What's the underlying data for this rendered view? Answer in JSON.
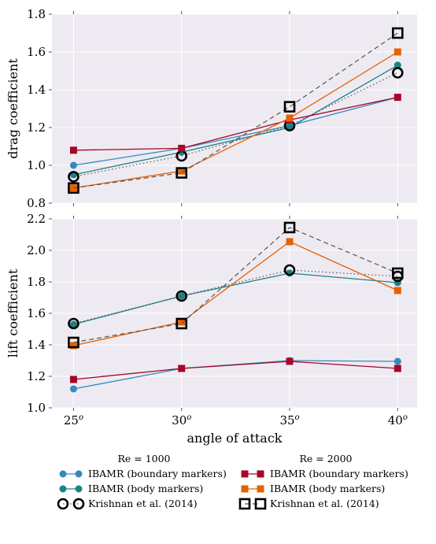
{
  "chart_data": [
    {
      "type": "line",
      "ylabel": "drag coefficient",
      "ylim": [
        0.8,
        1.8
      ],
      "yticks": [
        "0.8",
        "1.0",
        "1.2",
        "1.4",
        "1.6",
        "1.8"
      ],
      "x": [
        25,
        30,
        35,
        40
      ],
      "grid": true,
      "series": [
        {
          "name": "IBAMR (boundary markers)",
          "group": "Re = 1000",
          "color": "#348abd",
          "marker": "circle",
          "style": "solid",
          "values": [
            1.0,
            1.09,
            1.21,
            1.36
          ]
        },
        {
          "name": "IBAMR (body markers)",
          "group": "Re = 1000",
          "color": "#188487",
          "marker": "circle",
          "style": "solid",
          "values": [
            0.95,
            1.07,
            1.2,
            1.53
          ]
        },
        {
          "name": "Krishnan et al. (2014)",
          "group": "Re = 1000",
          "color": "#000000",
          "marker": "open-circle",
          "style": "dotted",
          "values": [
            0.94,
            1.05,
            1.21,
            1.49
          ]
        },
        {
          "name": "IBAMR (boundary markers)",
          "group": "Re = 2000",
          "color": "#a60628",
          "marker": "square",
          "style": "solid",
          "values": [
            1.08,
            1.09,
            1.24,
            1.36
          ]
        },
        {
          "name": "IBAMR (body markers)",
          "group": "Re = 2000",
          "color": "#e66101",
          "marker": "square",
          "style": "solid",
          "values": [
            0.88,
            0.97,
            1.25,
            1.6
          ]
        },
        {
          "name": "Krishnan et al. (2014)",
          "group": "Re = 2000",
          "color": "#000000",
          "marker": "open-square",
          "style": "dashed",
          "values": [
            0.88,
            0.96,
            1.31,
            1.7
          ]
        }
      ]
    },
    {
      "type": "line",
      "ylabel": "lift coefficient",
      "xlabel": "angle of attack",
      "ylim": [
        1.0,
        2.2
      ],
      "yticks": [
        "1.0",
        "1.2",
        "1.4",
        "1.6",
        "1.8",
        "2.0",
        "2.2"
      ],
      "x": [
        25,
        30,
        35,
        40
      ],
      "xticks": [
        "25°",
        "30°",
        "35°",
        "40°"
      ],
      "grid": true,
      "series": [
        {
          "name": "IBAMR (boundary markers)",
          "group": "Re = 1000",
          "color": "#348abd",
          "marker": "circle",
          "style": "solid",
          "values": [
            1.12,
            1.25,
            1.3,
            1.295
          ]
        },
        {
          "name": "IBAMR (body markers)",
          "group": "Re = 1000",
          "color": "#188487",
          "marker": "circle",
          "style": "solid",
          "values": [
            1.53,
            1.71,
            1.855,
            1.795
          ]
        },
        {
          "name": "Krishnan et al. (2014)",
          "group": "Re = 1000",
          "color": "#000000",
          "marker": "open-circle",
          "style": "dotted",
          "values": [
            1.535,
            1.71,
            1.875,
            1.835
          ]
        },
        {
          "name": "IBAMR (boundary markers)",
          "group": "Re = 2000",
          "color": "#a60628",
          "marker": "square",
          "style": "solid",
          "values": [
            1.18,
            1.25,
            1.295,
            1.25
          ]
        },
        {
          "name": "IBAMR (body markers)",
          "group": "Re = 2000",
          "color": "#e66101",
          "marker": "square",
          "style": "solid",
          "values": [
            1.395,
            1.545,
            2.055,
            1.745
          ]
        },
        {
          "name": "Krishnan et al. (2014)",
          "group": "Re = 2000",
          "color": "#000000",
          "marker": "open-square",
          "style": "dashed",
          "values": [
            1.415,
            1.535,
            2.145,
            1.855
          ]
        }
      ]
    }
  ],
  "legend": {
    "placement": "below",
    "groups": [
      {
        "title": "Re = 1000",
        "entries": [
          "IBAMR (boundary markers)",
          "IBAMR (body markers)",
          "Krishnan et al. (2014)"
        ]
      },
      {
        "title": "Re = 2000",
        "entries": [
          "IBAMR (boundary markers)",
          "IBAMR (body markers)",
          "Krishnan et al. (2014)"
        ]
      }
    ]
  },
  "colors": {
    "plot_background": "#eeeaf2",
    "grid": "#ffffff"
  }
}
